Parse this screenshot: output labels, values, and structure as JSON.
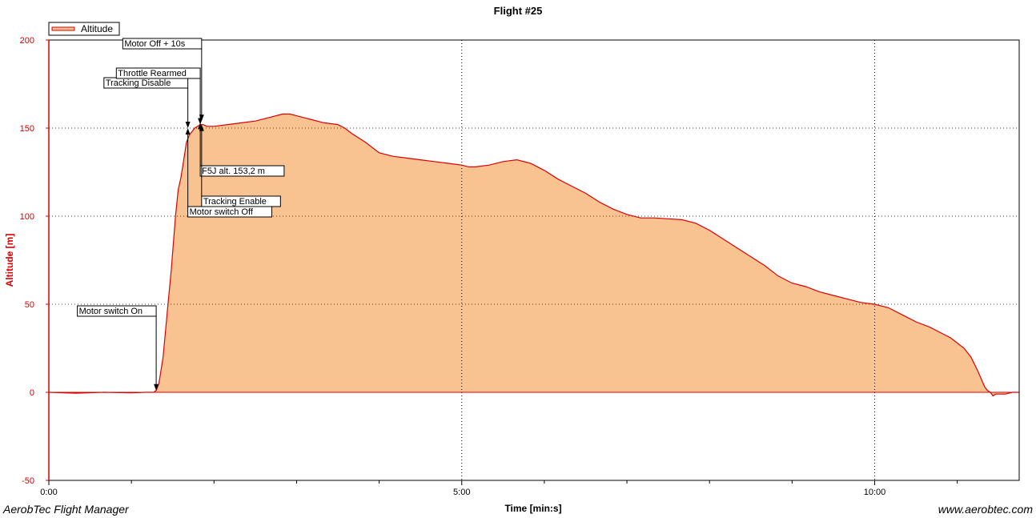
{
  "chart_data": {
    "type": "area",
    "title": "Flight #25",
    "xlabel": "Time [min:s]",
    "ylabel": "Altitude [m]",
    "xlim": [
      0,
      705
    ],
    "ylim": [
      -50,
      200
    ],
    "grid": true,
    "legend_position": "top-left",
    "x_ticks": [
      {
        "value": 0,
        "label": "0:00"
      },
      {
        "value": 300,
        "label": "5:00"
      },
      {
        "value": 600,
        "label": "10:00"
      }
    ],
    "x_minor_ticks": [
      60,
      120,
      180,
      240,
      360,
      420,
      480,
      540,
      660
    ],
    "y_ticks": [
      {
        "value": -50,
        "label": "-50"
      },
      {
        "value": 0,
        "label": "0"
      },
      {
        "value": 50,
        "label": "50"
      },
      {
        "value": 100,
        "label": "100"
      },
      {
        "value": 150,
        "label": "150"
      },
      {
        "value": 200,
        "label": "200"
      }
    ],
    "series": [
      {
        "name": "Altitude",
        "color": "#dd0000",
        "fill": "#f9c291",
        "x": [
          0,
          20,
          40,
          60,
          70,
          76,
          78,
          80,
          83,
          86,
          89,
          92,
          94,
          96,
          98,
          100,
          102,
          104,
          106,
          108,
          110,
          112,
          115,
          120,
          130,
          140,
          150,
          160,
          170,
          175,
          180,
          185,
          190,
          200,
          210,
          215,
          220,
          230,
          240,
          250,
          260,
          270,
          280,
          290,
          300,
          305,
          310,
          320,
          330,
          340,
          350,
          360,
          370,
          380,
          390,
          400,
          410,
          420,
          430,
          440,
          450,
          460,
          470,
          480,
          490,
          500,
          510,
          520,
          530,
          540,
          550,
          560,
          570,
          580,
          590,
          600,
          610,
          620,
          630,
          640,
          650,
          655,
          660,
          665,
          670,
          675,
          680,
          682,
          684,
          686,
          688,
          690,
          695,
          700,
          705
        ],
        "y": [
          0,
          -0.5,
          0,
          -0.3,
          0,
          0,
          1,
          5,
          20,
          45,
          70,
          100,
          115,
          122,
          132,
          142,
          146,
          148,
          150,
          151,
          152,
          152,
          151,
          151,
          152,
          153,
          154,
          156,
          158,
          158,
          157,
          156,
          155,
          153,
          152,
          150,
          147,
          142,
          136,
          134,
          133,
          132,
          131,
          130,
          129,
          128,
          128,
          129,
          131,
          132,
          130,
          126,
          121,
          117,
          113,
          108,
          104,
          101,
          99,
          99,
          98.5,
          98,
          96,
          92,
          87,
          82,
          77,
          72,
          66,
          62,
          60,
          57,
          55,
          53,
          51,
          50,
          48,
          44,
          40,
          37,
          33,
          31,
          28,
          25,
          20,
          12,
          3,
          1,
          0,
          -2,
          -1,
          -1,
          -1,
          0,
          0
        ]
      }
    ],
    "annotations": [
      {
        "label": "Motor switch On",
        "x": 78,
        "y": 1,
        "box": "upper-left"
      },
      {
        "label": "Tracking Disable",
        "x": 101,
        "y": 150,
        "box": "upper-left"
      },
      {
        "label": "Throttle Rearmed",
        "x": 110,
        "y": 152,
        "box": "upper-left"
      },
      {
        "label": "Motor Off + 10s",
        "x": 111,
        "y": 154,
        "box": "upper-left"
      },
      {
        "label": "Motor switch Off",
        "x": 101,
        "y": 150,
        "box": "lower-right"
      },
      {
        "label": "F5J alt. 153,2 m",
        "x": 110,
        "y": 153,
        "box": "lower-right"
      },
      {
        "label": "Tracking Enable",
        "x": 111,
        "y": 152,
        "box": "lower-right"
      }
    ]
  },
  "footer": {
    "left": "AerobTec Flight Manager",
    "right": "www.aerobtec.com"
  }
}
